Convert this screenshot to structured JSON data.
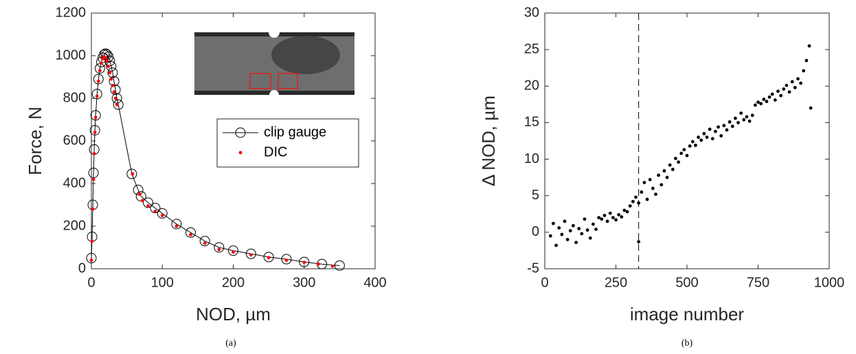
{
  "chart_data": [
    {
      "type": "scatter",
      "caption": "(a)",
      "x_label": "NOD, µm",
      "y_label": "Force, N",
      "xlim": [
        0,
        400
      ],
      "ylim": [
        0,
        1200
      ],
      "xticks": [
        0,
        100,
        200,
        300,
        400
      ],
      "yticks": [
        0,
        200,
        400,
        600,
        800,
        1000,
        1200
      ],
      "legend": "northeast",
      "series": [
        {
          "name": "clip gauge",
          "color": "#000000",
          "marker": "circle",
          "line": true,
          "x": [
            0,
            1,
            2,
            3,
            4,
            5,
            6,
            8,
            10,
            12,
            14,
            16,
            18,
            20,
            22,
            24,
            26,
            28,
            30,
            32,
            34,
            36,
            38,
            57,
            66,
            70,
            80,
            90,
            100,
            120,
            140,
            160,
            180,
            200,
            225,
            250,
            275,
            300,
            325,
            350
          ],
          "values": [
            50,
            150,
            300,
            450,
            560,
            650,
            720,
            820,
            890,
            940,
            970,
            990,
            1005,
            1010,
            1005,
            995,
            975,
            950,
            920,
            880,
            840,
            800,
            770,
            445,
            370,
            340,
            310,
            285,
            260,
            210,
            170,
            130,
            100,
            85,
            70,
            55,
            45,
            32,
            22,
            15
          ]
        },
        {
          "name": "DIC",
          "color": "#ff0000",
          "marker": "dot",
          "line": false,
          "x": [
            0,
            1,
            2,
            3,
            4,
            5,
            6,
            8,
            10,
            12,
            14,
            16,
            18,
            20,
            22,
            24,
            26,
            28,
            30,
            32,
            34,
            36,
            58,
            68,
            72,
            80,
            90,
            100,
            120,
            140,
            160,
            180,
            200,
            225,
            250,
            275,
            300,
            320,
            340
          ],
          "values": [
            40,
            130,
            280,
            420,
            540,
            640,
            710,
            810,
            880,
            930,
            965,
            985,
            995,
            990,
            975,
            950,
            920,
            890,
            860,
            830,
            800,
            770,
            445,
            350,
            320,
            295,
            270,
            250,
            200,
            160,
            120,
            90,
            78,
            65,
            52,
            40,
            30,
            22,
            12
          ]
        }
      ]
    },
    {
      "type": "scatter",
      "caption": "(b)",
      "x_label": "image number",
      "y_label": "Δ NOD, µm",
      "xlim": [
        0,
        1000
      ],
      "ylim": [
        -5,
        30
      ],
      "xticks": [
        0,
        250,
        500,
        750,
        1000
      ],
      "yticks": [
        -5,
        0,
        5,
        10,
        15,
        20,
        25,
        30
      ],
      "vline": 330,
      "series": [
        {
          "color": "#000000",
          "marker": "dot",
          "line": false,
          "x": [
            20,
            30,
            40,
            50,
            60,
            70,
            80,
            90,
            100,
            110,
            120,
            130,
            140,
            150,
            160,
            170,
            180,
            190,
            200,
            210,
            220,
            230,
            240,
            250,
            260,
            270,
            280,
            290,
            300,
            310,
            320,
            330,
            340,
            350,
            360,
            370,
            380,
            390,
            400,
            410,
            420,
            430,
            440,
            450,
            460,
            470,
            480,
            490,
            500,
            510,
            520,
            530,
            540,
            550,
            560,
            570,
            580,
            590,
            600,
            610,
            620,
            630,
            640,
            650,
            660,
            670,
            680,
            690,
            700,
            710,
            720,
            730,
            740,
            750,
            760,
            770,
            780,
            790,
            800,
            810,
            820,
            830,
            840,
            850,
            860,
            870,
            880,
            890,
            900,
            910,
            920,
            930,
            330,
            935
          ],
          "values": [
            -0.5,
            1.2,
            -1.8,
            0.6,
            -0.3,
            1.5,
            -1.0,
            0.2,
            0.9,
            -1.4,
            0.5,
            -0.2,
            1.8,
            0.3,
            -0.8,
            1.1,
            0.4,
            2.0,
            1.8,
            2.3,
            1.5,
            2.6,
            2.0,
            1.7,
            2.4,
            2.1,
            3.0,
            2.8,
            3.6,
            4.2,
            4.8,
            4.0,
            5.5,
            6.8,
            4.5,
            7.2,
            6.0,
            5.2,
            7.8,
            6.5,
            8.4,
            7.5,
            9.2,
            8.6,
            10.1,
            9.6,
            10.8,
            11.3,
            10.5,
            11.8,
            12.4,
            11.9,
            13.0,
            12.6,
            13.5,
            13.0,
            14.1,
            12.8,
            13.8,
            14.4,
            13.2,
            14.6,
            14.0,
            15.1,
            14.5,
            15.6,
            15.0,
            16.3,
            15.4,
            15.8,
            15.2,
            16.0,
            17.4,
            17.8,
            17.6,
            18.2,
            17.9,
            18.5,
            18.9,
            18.1,
            19.3,
            18.7,
            19.6,
            20.1,
            19.2,
            20.6,
            19.8,
            21.0,
            20.4,
            22.1,
            23.5,
            25.5,
            -1.3,
            17.0
          ]
        }
      ]
    }
  ]
}
